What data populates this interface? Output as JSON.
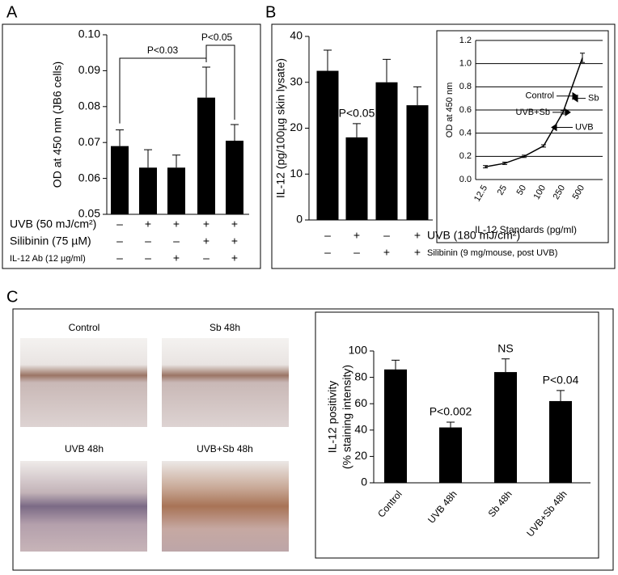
{
  "chart_data": [
    {
      "panel": "A",
      "type": "bar",
      "ylabel": "OD at 450 nm (JB6 cells)",
      "color": "#000000",
      "values": [
        0.069,
        0.063,
        0.063,
        0.0825,
        0.0705
      ],
      "errors": [
        0.0045,
        0.005,
        0.0035,
        0.0085,
        0.0045
      ],
      "ylim": [
        0.05,
        0.1
      ],
      "yticks": [
        0.05,
        0.06,
        0.07,
        0.08,
        0.09,
        {
          "value": 0.1,
          "label": "0.10"
        }
      ],
      "annotations": [
        "P<0.03",
        "P<0.05"
      ],
      "treatments": [
        {
          "name": "UVB (50 mJ/cm²)",
          "signs": [
            "–",
            "+",
            "+",
            "+",
            "+"
          ]
        },
        {
          "name": "Silibinin (75 µM)",
          "signs": [
            "–",
            "–",
            "–",
            "+",
            "+"
          ]
        },
        {
          "name": "IL-12 Ab (12 µg/ml)",
          "signs": [
            "–",
            "–",
            "+",
            "–",
            "+"
          ]
        }
      ]
    },
    {
      "panel": "B",
      "type": "bar",
      "ylabel": "IL-12 (pg/100µg skin lysate)",
      "color": "#000000",
      "values": [
        32.5,
        18,
        30,
        25
      ],
      "errors": [
        4.5,
        3,
        5,
        4
      ],
      "ylim": [
        0,
        40
      ],
      "yticks": [
        0,
        10,
        20,
        30,
        40
      ],
      "annotations": [
        null,
        "P<0.05",
        null,
        null
      ],
      "treatments": [
        {
          "name": "UVB (180 mJ/cm²)",
          "signs": [
            "–",
            "+",
            "–",
            "+"
          ]
        },
        {
          "name": "Silibinin (9 mg/mouse, post UVB)",
          "signs": [
            "–",
            "–",
            "+",
            "+"
          ]
        }
      ]
    },
    {
      "type": "line",
      "ylabel": "OD at 450 nm",
      "xlabel": "IL-12 Standards (pg/ml)",
      "color": "#000000",
      "categories": [
        "12.5",
        "25",
        "50",
        "100",
        "250",
        "500"
      ],
      "values": [
        0.11,
        0.14,
        0.2,
        0.29,
        0.58,
        1.05
      ],
      "errors": [
        0.01,
        0.01,
        0.01,
        0.01,
        0.015,
        0.04
      ],
      "ylim": [
        0,
        1.2
      ],
      "yticks": [
        {
          "value": 0,
          "label": "0.0"
        },
        0.2,
        0.4,
        0.6,
        0.8,
        {
          "value": 1,
          "label": "1.0"
        },
        1.2
      ],
      "grid": true,
      "markers": [
        {
          "label": "Control",
          "value": 0.72
        },
        {
          "label": "Sb",
          "value": 0.7
        },
        {
          "label": "UVB+Sb",
          "value": 0.58
        },
        {
          "label": "UVB",
          "value": 0.45
        }
      ]
    },
    {
      "panel": "C",
      "type": "bar",
      "ylabel": [
        "IL-12 positivity",
        "(% staining intensity)"
      ],
      "color": "#000000",
      "micrographs": [
        "Control",
        "Sb 48h",
        "UVB 48h",
        "UVB+Sb 48h"
      ],
      "categories": [
        "Control",
        "UVB 48h",
        "Sb 48h",
        "UVB+Sb 48h"
      ],
      "values": [
        86,
        42,
        84,
        62
      ],
      "errors": [
        7,
        4,
        10,
        8
      ],
      "ylim": [
        0,
        100
      ],
      "yticks": [
        0,
        20,
        40,
        60,
        80,
        100
      ],
      "annotations": [
        null,
        "P<0.002",
        "NS",
        "P<0.04"
      ]
    }
  ]
}
